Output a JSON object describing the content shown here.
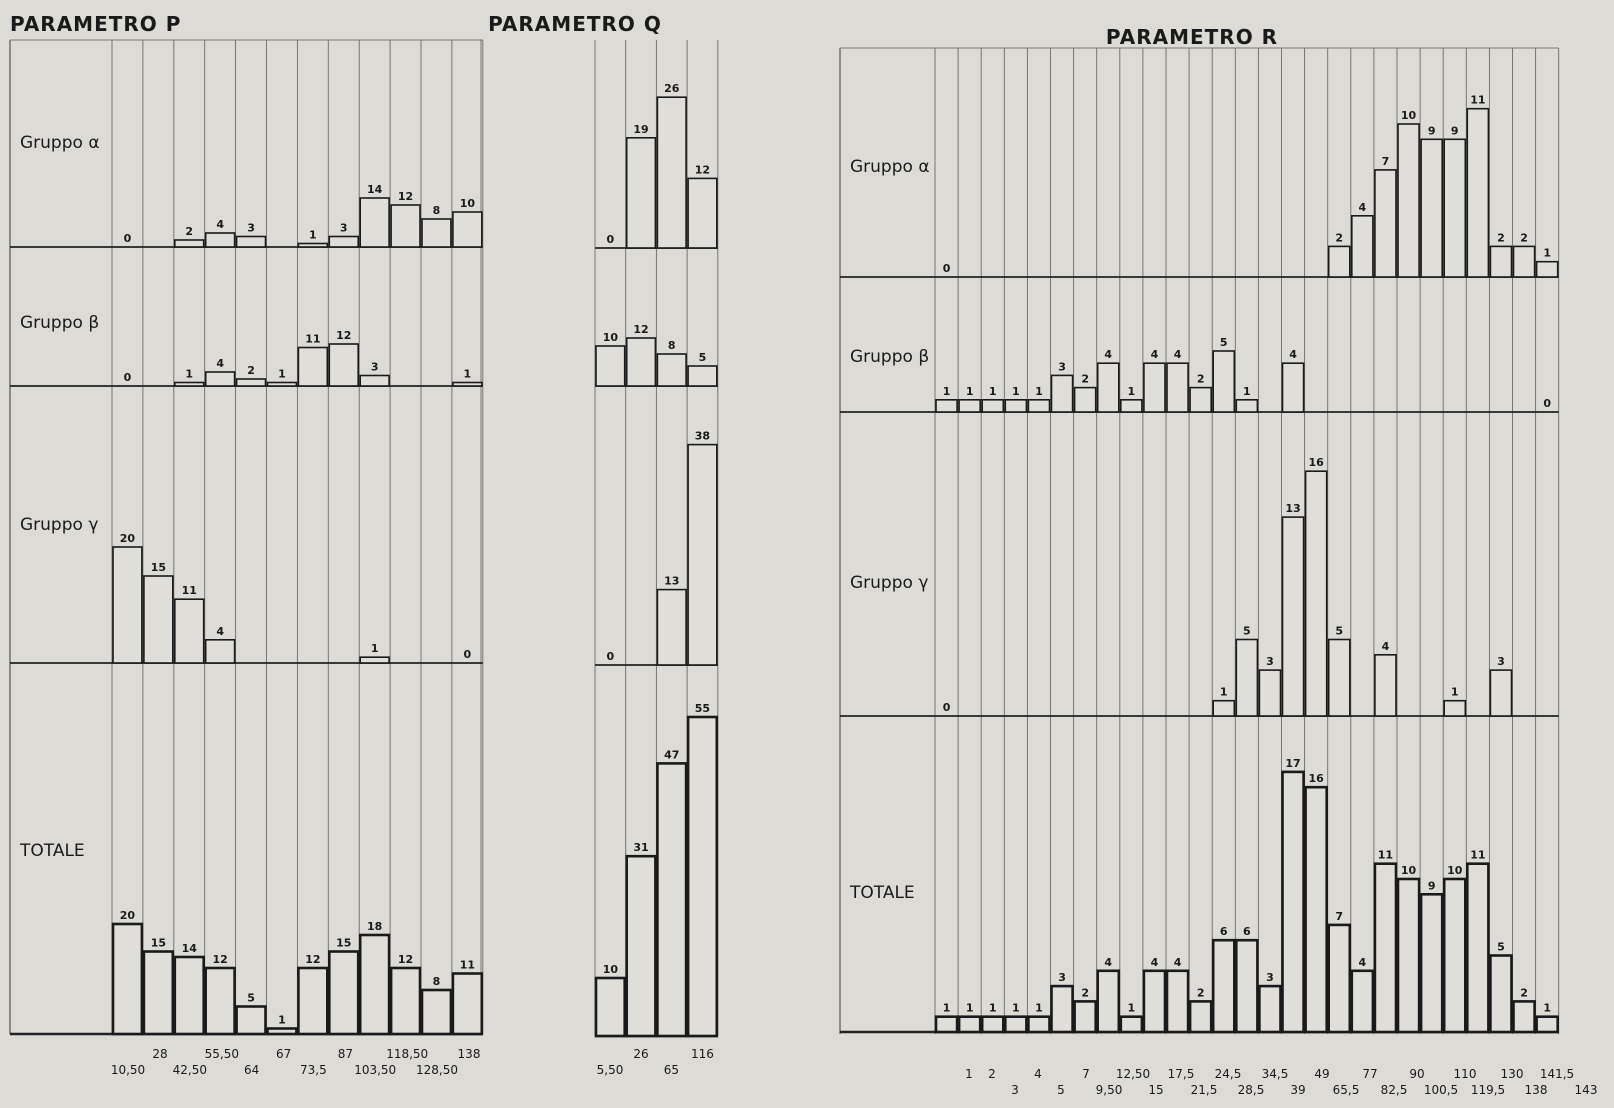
{
  "chart_data": [
    {
      "type": "bar",
      "title": "PARAMETRO P",
      "tick_labels_row1": [
        "28",
        "55,50",
        "67",
        "87",
        "118,50",
        "138"
      ],
      "tick_labels_row2": [
        "10,50",
        "42,50",
        "64",
        "73,5",
        "103,50",
        "128,50"
      ],
      "series": [
        {
          "name": "Gruppo α",
          "values": [
            0,
            null,
            2,
            4,
            3,
            null,
            1,
            3,
            14,
            12,
            8,
            10
          ]
        },
        {
          "name": "Gruppo β",
          "values": [
            0,
            null,
            1,
            4,
            2,
            1,
            11,
            12,
            3,
            null,
            null,
            1
          ]
        },
        {
          "name": "Gruppo γ",
          "values": [
            20,
            15,
            11,
            4,
            null,
            null,
            null,
            null,
            1,
            null,
            null,
            0
          ]
        },
        {
          "name": "TOTALE",
          "values": [
            20,
            15,
            14,
            12,
            5,
            1,
            12,
            15,
            18,
            12,
            8,
            11
          ]
        }
      ]
    },
    {
      "type": "bar",
      "title": "PARAMETRO Q",
      "tick_labels_row1": [
        "26",
        "116"
      ],
      "tick_labels_row2": [
        "5,50",
        "65"
      ],
      "series": [
        {
          "name": "Gruppo α",
          "values": [
            0,
            19,
            26,
            12
          ]
        },
        {
          "name": "Gruppo β",
          "values": [
            10,
            12,
            8,
            5
          ]
        },
        {
          "name": "Gruppo γ",
          "values": [
            0,
            null,
            13,
            38
          ]
        },
        {
          "name": "TOTALE",
          "values": [
            10,
            31,
            47,
            55
          ]
        }
      ]
    },
    {
      "type": "bar",
      "title": "PARAMETRO R",
      "tick_labels_row1": [
        "1",
        "2",
        "4",
        "7",
        "12,50",
        "17,5",
        "24,5",
        "34,5",
        "49",
        "77",
        "90",
        "110",
        "130",
        "141,5"
      ],
      "tick_labels_row2": [
        "3",
        "5",
        "9,50",
        "15",
        "21,5",
        "28,5",
        "39",
        "65,5",
        "82,5",
        "100,5",
        "119,5",
        "138",
        "143"
      ],
      "series": [
        {
          "name": "Gruppo α",
          "values": [
            0,
            null,
            null,
            null,
            null,
            null,
            null,
            null,
            null,
            null,
            null,
            null,
            null,
            null,
            null,
            null,
            null,
            2,
            4,
            7,
            10,
            9,
            9,
            11,
            2,
            2,
            1
          ]
        },
        {
          "name": "Gruppo β",
          "values": [
            1,
            1,
            1,
            1,
            1,
            3,
            2,
            4,
            1,
            4,
            4,
            2,
            5,
            1,
            null,
            4,
            null,
            null,
            null,
            null,
            null,
            null,
            null,
            null,
            null,
            null,
            0
          ]
        },
        {
          "name": "Gruppo γ",
          "values": [
            0,
            null,
            null,
            null,
            null,
            null,
            null,
            null,
            null,
            null,
            null,
            null,
            1,
            5,
            3,
            13,
            16,
            5,
            null,
            4,
            null,
            null,
            1,
            null,
            3,
            null,
            null
          ]
        },
        {
          "name": "TOTALE",
          "values": [
            1,
            1,
            1,
            1,
            1,
            3,
            2,
            4,
            1,
            4,
            4,
            2,
            6,
            6,
            3,
            17,
            16,
            7,
            4,
            11,
            10,
            9,
            10,
            11,
            5,
            2,
            1
          ]
        }
      ]
    }
  ]
}
